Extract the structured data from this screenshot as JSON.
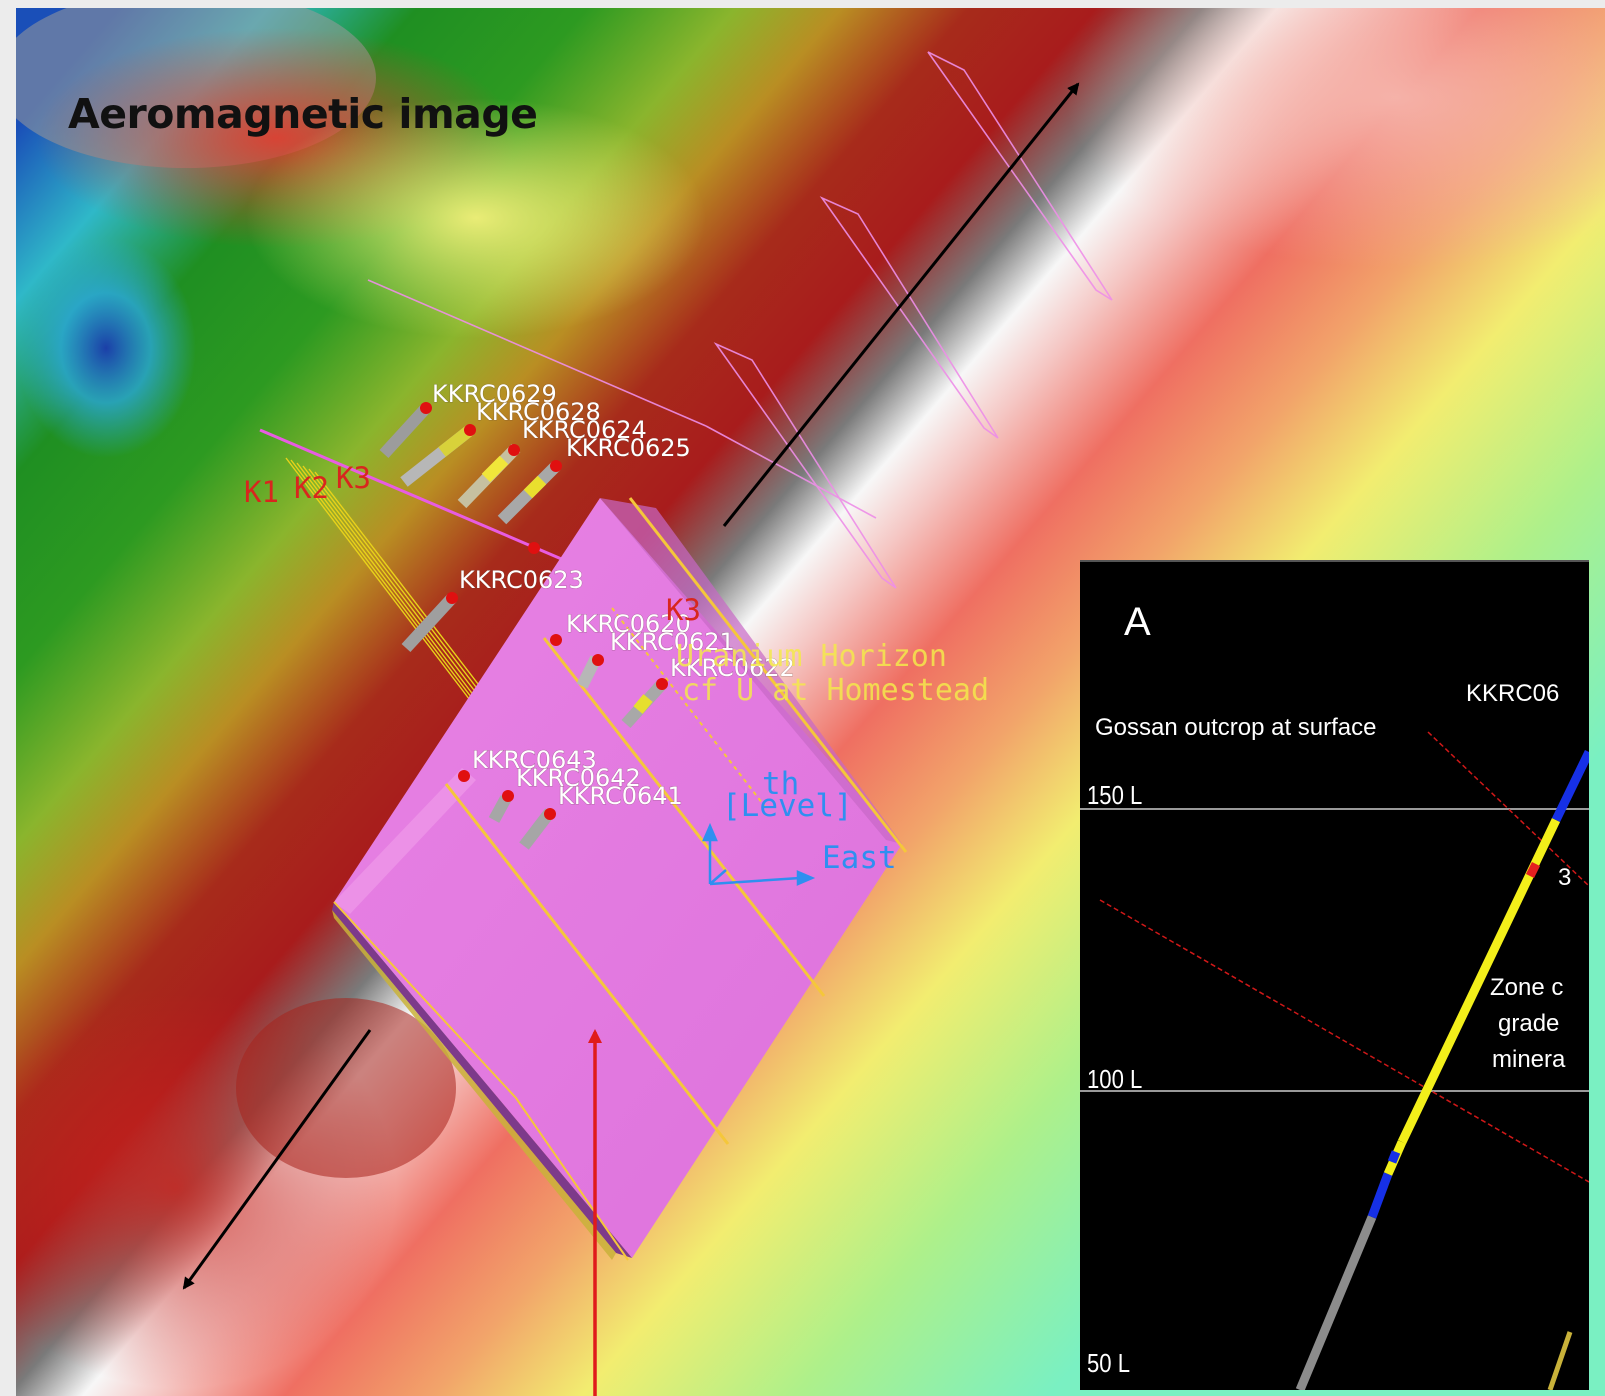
{
  "title": "Aeromagnetic image",
  "drillholes": {
    "kkrc0629": "KKRC0629",
    "kkrc0628": "KKRC0628",
    "kkrc0624": "KKRC0624",
    "kkrc0625": "KKRC0625",
    "kkrc0623": "KKRC0623",
    "kkrc0620": "KKRC0620",
    "kkrc0621": "KKRC0621",
    "kkrc0622": "KKRC0622",
    "kkrc0643": "KKRC0643",
    "kkrc0642": "KKRC0642",
    "kkrc0641": "KKRC0641"
  },
  "horizon_labels": {
    "k1": "K1",
    "k2": "K2",
    "k3_a": "K3",
    "k3_b": "K3",
    "line1": "Uranium Horizon",
    "line2": "cf U at Homestead"
  },
  "orientation": {
    "depth": "th",
    "level": "[Level]",
    "east": "East"
  },
  "section": {
    "letter": "A",
    "drillhole_partial": "KKRC06",
    "gossan": "Gossan outcrop at surface",
    "levels": [
      "150 L",
      "100 L",
      "50 L"
    ],
    "zone_lines": [
      "Zone c",
      "grade",
      "minera"
    ],
    "marker": "3"
  },
  "colors": {
    "magnetic_high": "#a8221c",
    "magnetic_mid": "#f0ef74",
    "magnetic_low": "#1f8a1e",
    "ore_body": "#e97ae6",
    "arrow_red": "#e01b1b",
    "drill_collar": "#e01010"
  }
}
